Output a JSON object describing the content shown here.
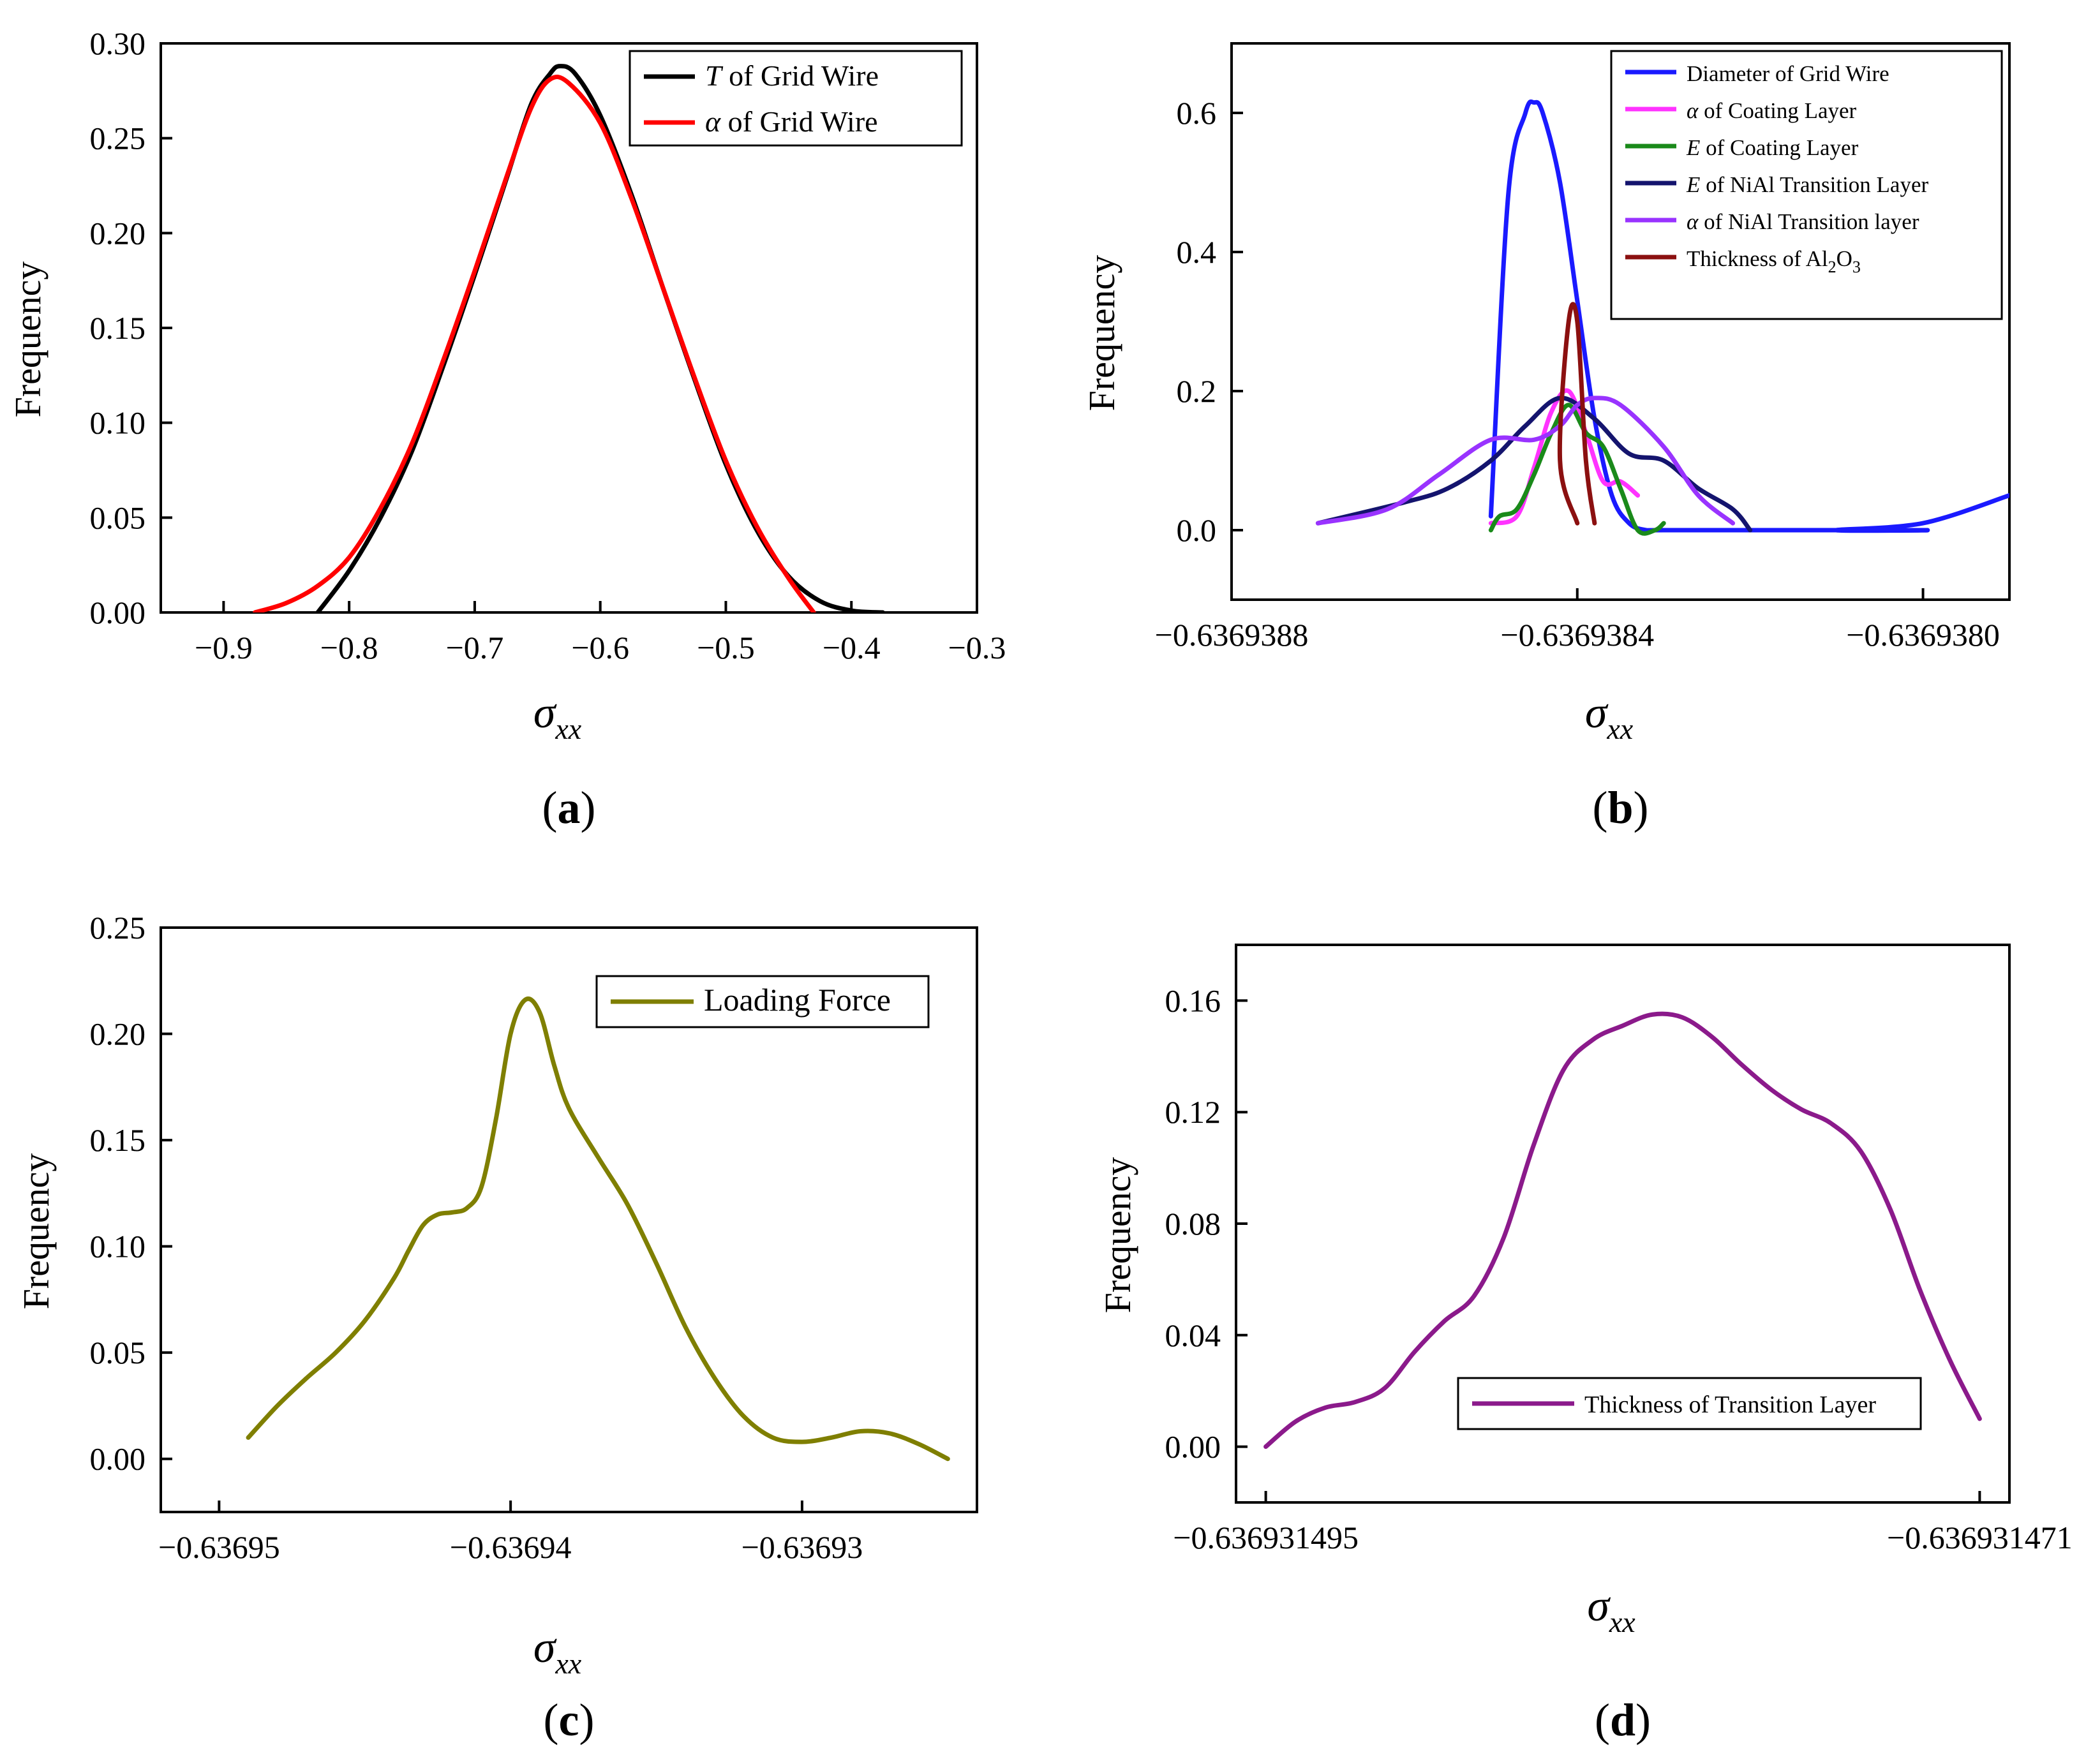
{
  "figure": {
    "description_labels": [
      "(a)",
      "(b)",
      "(c)",
      "(d)"
    ]
  },
  "chart_data": [
    {
      "id": "a",
      "type": "line",
      "panel_label": "a",
      "ylabel": "Frequency",
      "xlabel_symbol": "σ",
      "xlabel_subscript": "xx",
      "xlim": [
        -0.95,
        -0.3
      ],
      "ylim": [
        0.0,
        0.3
      ],
      "x_ticks": [
        -0.9,
        -0.8,
        -0.7,
        -0.6,
        -0.5,
        -0.4,
        -0.3
      ],
      "x_tick_labels": [
        "−0.9",
        "−0.8",
        "−0.7",
        "−0.6",
        "−0.5",
        "−0.4",
        "−0.3"
      ],
      "y_ticks": [
        0.0,
        0.05,
        0.1,
        0.15,
        0.2,
        0.25,
        0.3
      ],
      "y_tick_labels": [
        "0.00",
        "0.05",
        "0.10",
        "0.15",
        "0.20",
        "0.25",
        "0.30"
      ],
      "legend_position": "top-right",
      "series": [
        {
          "name": "T of Grid Wire",
          "legend_italic": "T",
          "legend_rest": " of Grid Wire",
          "color": "#000000",
          "x": [
            -0.825,
            -0.8,
            -0.775,
            -0.75,
            -0.725,
            -0.7,
            -0.675,
            -0.655,
            -0.64,
            -0.632,
            -0.62,
            -0.6,
            -0.575,
            -0.55,
            -0.525,
            -0.5,
            -0.475,
            -0.45,
            -0.425,
            -0.4,
            -0.375
          ],
          "y": [
            0.0,
            0.022,
            0.05,
            0.085,
            0.13,
            0.178,
            0.228,
            0.268,
            0.284,
            0.288,
            0.284,
            0.262,
            0.22,
            0.171,
            0.123,
            0.078,
            0.043,
            0.019,
            0.006,
            0.001,
            0.0
          ]
        },
        {
          "name": "α of Grid Wire",
          "legend_italic": "α",
          "legend_rest": " of Grid Wire",
          "color": "#ff0000",
          "x": [
            -0.875,
            -0.85,
            -0.825,
            -0.8,
            -0.775,
            -0.75,
            -0.725,
            -0.7,
            -0.675,
            -0.655,
            -0.64,
            -0.625,
            -0.6,
            -0.575,
            -0.55,
            -0.525,
            -0.5,
            -0.475,
            -0.45,
            -0.43
          ],
          "y": [
            0.0,
            0.005,
            0.014,
            0.029,
            0.055,
            0.089,
            0.133,
            0.18,
            0.229,
            0.266,
            0.281,
            0.279,
            0.258,
            0.218,
            0.171,
            0.124,
            0.08,
            0.045,
            0.018,
            0.0
          ]
        }
      ]
    },
    {
      "id": "b",
      "type": "line",
      "panel_label": "b",
      "ylabel": "Frequency",
      "xlabel_symbol": "σ",
      "xlabel_subscript": "xx",
      "xlim": [
        -0.6369388,
        -0.6369379
      ],
      "ylim": [
        -0.1,
        0.7
      ],
      "x_ticks": [
        -0.6369388,
        -0.6369384,
        -0.636938
      ],
      "x_tick_labels": [
        "−0.6369388",
        "−0.6369384",
        "−0.6369380"
      ],
      "y_ticks": [
        0.0,
        0.2,
        0.4,
        0.6
      ],
      "y_tick_labels": [
        "0.0",
        "0.2",
        "0.4",
        "0.6"
      ],
      "legend_position": "top-right",
      "series": [
        {
          "name": "Diameter of Grid Wire",
          "legend_italic": "",
          "legend_rest": "Diameter of Grid Wire",
          "color": "#1a1aff",
          "x": [
            -0.6369385,
            -0.63693848,
            -0.63693846,
            -0.63693845,
            -0.63693844,
            -0.63693842,
            -0.6369384,
            -0.63693838,
            -0.63693836,
            -0.63693834,
            -0.63693832,
            -0.6369383,
            -0.636938,
            -0.6369381,
            -0.636938,
            -0.6369379
          ],
          "y": [
            0.02,
            0.48,
            0.6,
            0.615,
            0.6,
            0.5,
            0.33,
            0.16,
            0.05,
            0.01,
            0.0,
            0.0,
            0.0,
            0.0,
            0.01,
            0.05
          ]
        },
        {
          "name": "α of Coating Layer",
          "legend_italic": "α",
          "legend_rest": " of Coating Layer",
          "color": "#ff33ff",
          "x": [
            -0.6369385,
            -0.63693847,
            -0.63693845,
            -0.63693843,
            -0.63693841,
            -0.63693839,
            -0.63693837,
            -0.63693835,
            -0.63693833
          ],
          "y": [
            0.01,
            0.02,
            0.09,
            0.17,
            0.2,
            0.14,
            0.07,
            0.07,
            0.05
          ]
        },
        {
          "name": "E of Coating Layer",
          "legend_italic": "E",
          "legend_rest": " of Coating Layer",
          "color": "#1a8a1a",
          "x": [
            -0.6369385,
            -0.63693849,
            -0.63693847,
            -0.63693845,
            -0.63693843,
            -0.63693841,
            -0.63693839,
            -0.63693837,
            -0.63693835,
            -0.63693833,
            -0.63693831,
            -0.6369383
          ],
          "y": [
            0.0,
            0.02,
            0.03,
            0.08,
            0.14,
            0.18,
            0.14,
            0.12,
            0.06,
            0.0,
            0.0,
            0.01
          ]
        },
        {
          "name": "E of NiAl Transition Layer",
          "legend_italic": "E",
          "legend_rest": " of NiAl Transition Layer",
          "color": "#14146e",
          "x": [
            -0.6369387,
            -0.6369386,
            -0.63693855,
            -0.6369385,
            -0.63693846,
            -0.63693842,
            -0.63693838,
            -0.63693834,
            -0.6369383,
            -0.63693826,
            -0.63693822,
            -0.6369382
          ],
          "y": [
            0.01,
            0.04,
            0.06,
            0.1,
            0.15,
            0.19,
            0.16,
            0.11,
            0.1,
            0.06,
            0.03,
            0.0
          ]
        },
        {
          "name": "α of NiAl Transition layer",
          "legend_italic": "α",
          "legend_rest": " of NiAl Transition layer",
          "color": "#9933ff",
          "x": [
            -0.6369387,
            -0.63693862,
            -0.63693856,
            -0.6369385,
            -0.63693845,
            -0.63693842,
            -0.6369384,
            -0.63693838,
            -0.63693835,
            -0.6369383,
            -0.63693826,
            -0.63693822
          ],
          "y": [
            0.01,
            0.03,
            0.08,
            0.13,
            0.13,
            0.15,
            0.18,
            0.19,
            0.18,
            0.12,
            0.05,
            0.01
          ]
        },
        {
          "name": "Thickness of Al2O3",
          "legend_italic": "",
          "legend_rest": "Thickness of Al",
          "legend_sub1": "2",
          "legend_mid": "O",
          "legend_sub2": "3",
          "color": "#8b1010",
          "x": [
            -0.6369384,
            -0.63693842,
            -0.63693841,
            -0.6369384,
            -0.63693839,
            -0.63693838
          ],
          "y": [
            0.01,
            0.1,
            0.3,
            0.3,
            0.1,
            0.01
          ]
        }
      ]
    },
    {
      "id": "c",
      "type": "line",
      "panel_label": "c",
      "ylabel": "Frequency",
      "xlabel_symbol": "σ",
      "xlabel_subscript": "xx",
      "xlim": [
        -0.636952,
        -0.636924
      ],
      "ylim": [
        -0.025,
        0.25
      ],
      "x_ticks": [
        -0.63695,
        -0.63694,
        -0.63693
      ],
      "x_tick_labels": [
        "−0.63695",
        "−0.63694",
        "−0.63693"
      ],
      "y_ticks": [
        0.0,
        0.05,
        0.1,
        0.15,
        0.2,
        0.25
      ],
      "y_tick_labels": [
        "0.00",
        "0.05",
        "0.10",
        "0.15",
        "0.20",
        "0.25"
      ],
      "legend_position": "top-right",
      "series": [
        {
          "name": "Loading Force",
          "legend_italic": "",
          "legend_rest": "Loading Force",
          "color": "#7f7f00",
          "x": [
            -0.636949,
            -0.636948,
            -0.636947,
            -0.636946,
            -0.636945,
            -0.636944,
            -0.6369435,
            -0.636943,
            -0.6369425,
            -0.636942,
            -0.6369415,
            -0.636941,
            -0.6369405,
            -0.63694,
            -0.6369395,
            -0.636939,
            -0.6369385,
            -0.636938,
            -0.636937,
            -0.636936,
            -0.636935,
            -0.636934,
            -0.636933,
            -0.636932,
            -0.636931,
            -0.63693,
            -0.636929,
            -0.636928,
            -0.636927,
            -0.636926,
            -0.636925
          ],
          "y": [
            0.01,
            0.025,
            0.038,
            0.05,
            0.065,
            0.085,
            0.098,
            0.11,
            0.115,
            0.116,
            0.118,
            0.128,
            0.16,
            0.2,
            0.216,
            0.21,
            0.185,
            0.165,
            0.142,
            0.12,
            0.092,
            0.062,
            0.038,
            0.02,
            0.01,
            0.008,
            0.01,
            0.013,
            0.012,
            0.007,
            0.0
          ]
        }
      ]
    },
    {
      "id": "d",
      "type": "line",
      "panel_label": "d",
      "ylabel": "Frequency",
      "xlabel_symbol": "σ",
      "xlabel_subscript": "xx",
      "xlim": [
        -0.636931496,
        -0.63693147
      ],
      "ylim": [
        -0.02,
        0.18
      ],
      "x_ticks": [
        -0.636931495,
        -0.636931471
      ],
      "x_tick_labels": [
        "−0.636931495",
        "−0.636931471"
      ],
      "y_ticks": [
        0.0,
        0.04,
        0.08,
        0.12,
        0.16
      ],
      "y_tick_labels": [
        "0.00",
        "0.04",
        "0.08",
        "0.12",
        "0.16"
      ],
      "legend_position": "bottom-center",
      "series": [
        {
          "name": "Thickness of Transition Layer",
          "legend_italic": "",
          "legend_rest": "Thickness of Transition Layer",
          "color": "#8b1a8b",
          "x": [
            -0.636931495,
            -0.636931494,
            -0.636931493,
            -0.636931492,
            -0.636931491,
            -0.63693149,
            -0.636931489,
            -0.636931488,
            -0.636931487,
            -0.636931486,
            -0.636931485,
            -0.636931484,
            -0.636931483,
            -0.636931482,
            -0.636931481,
            -0.63693148,
            -0.636931479,
            -0.636931478,
            -0.636931477,
            -0.636931476,
            -0.636931475,
            -0.636931474,
            -0.636931473,
            -0.636931472,
            -0.636931471
          ],
          "y": [
            0.0,
            0.009,
            0.014,
            0.016,
            0.021,
            0.034,
            0.045,
            0.054,
            0.075,
            0.108,
            0.135,
            0.146,
            0.151,
            0.155,
            0.154,
            0.147,
            0.137,
            0.128,
            0.121,
            0.116,
            0.106,
            0.085,
            0.056,
            0.031,
            0.01
          ]
        }
      ]
    }
  ]
}
